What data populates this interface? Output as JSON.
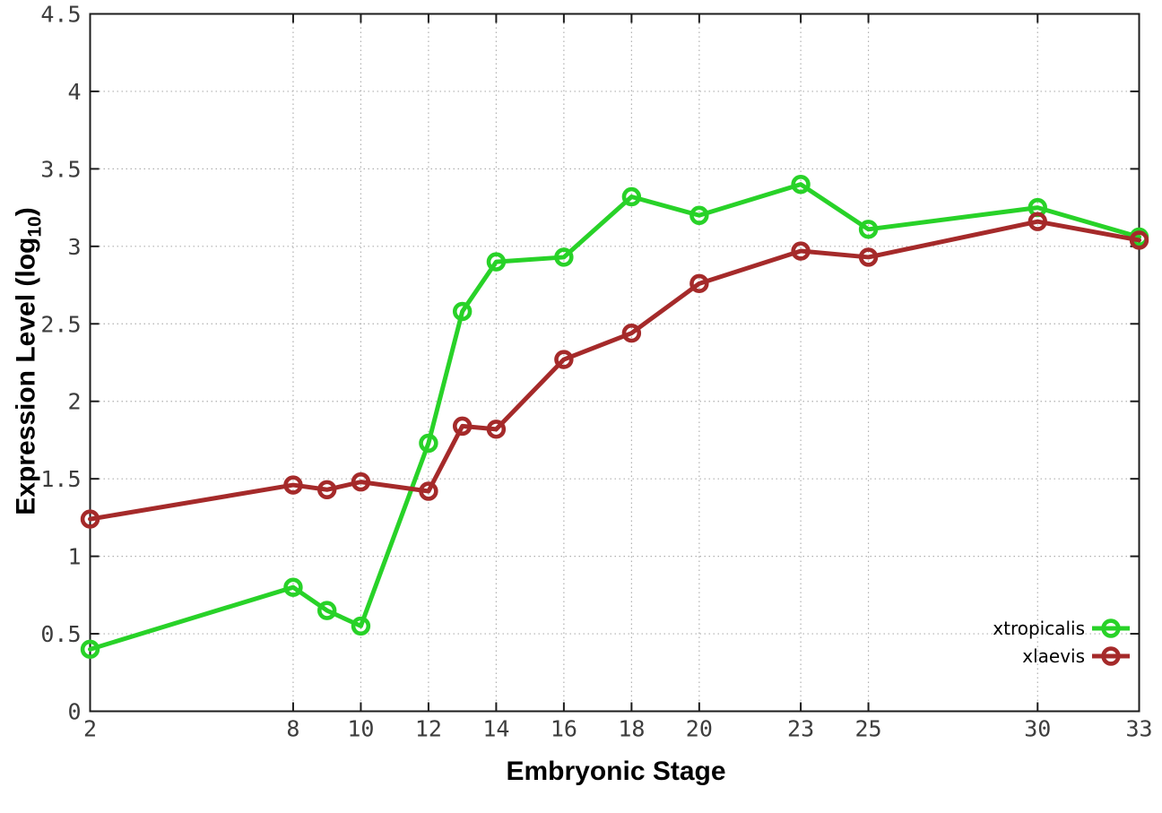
{
  "chart_data": {
    "type": "line",
    "title": "",
    "xlabel": "Embryonic Stage",
    "ylabel": "Expression Level (log10)",
    "ylabel_parts": {
      "pre": "Expression Level (log",
      "sub": "10",
      "post": ")"
    },
    "xlim": [
      2,
      33
    ],
    "ylim": [
      0,
      4.5
    ],
    "grid": true,
    "grid_style": "dotted",
    "legend_position": "inside-bottom-right",
    "xticks": [
      2,
      8,
      10,
      12,
      14,
      16,
      18,
      20,
      23,
      25,
      30,
      33
    ],
    "xtick_labels": [
      "2",
      "8",
      "10",
      "12",
      "14",
      "16",
      "18",
      "20",
      "23",
      "25",
      "30",
      "33"
    ],
    "yticks": [
      0,
      0.5,
      1,
      1.5,
      2,
      2.5,
      3,
      3.5,
      4,
      4.5
    ],
    "ytick_labels": [
      "0",
      "0.5",
      "1",
      "1.5",
      "2",
      "2.5",
      "3",
      "3.5",
      "4",
      "4.5"
    ],
    "x": [
      2,
      8,
      9,
      10,
      12,
      13,
      14,
      16,
      18,
      20,
      23,
      25,
      30,
      33
    ],
    "series": [
      {
        "name": "xtropicalis",
        "color": "#28d228",
        "values": [
          0.4,
          0.8,
          0.65,
          0.55,
          1.73,
          2.58,
          2.9,
          2.93,
          3.32,
          3.2,
          3.4,
          3.11,
          3.25,
          3.06
        ]
      },
      {
        "name": "xlaevis",
        "color": "#a52a2a",
        "values": [
          1.24,
          1.46,
          1.43,
          1.48,
          1.42,
          1.84,
          1.82,
          2.27,
          2.44,
          2.76,
          2.97,
          2.93,
          3.16,
          3.04
        ]
      }
    ]
  },
  "colors": {
    "background": "#ffffff",
    "border": "#1c1c1c",
    "grid": "#b0b0b0",
    "tick_text": "#3d3d3d",
    "title_text": "#000000",
    "series_green": "#28d228",
    "series_red": "#a52a2a"
  }
}
